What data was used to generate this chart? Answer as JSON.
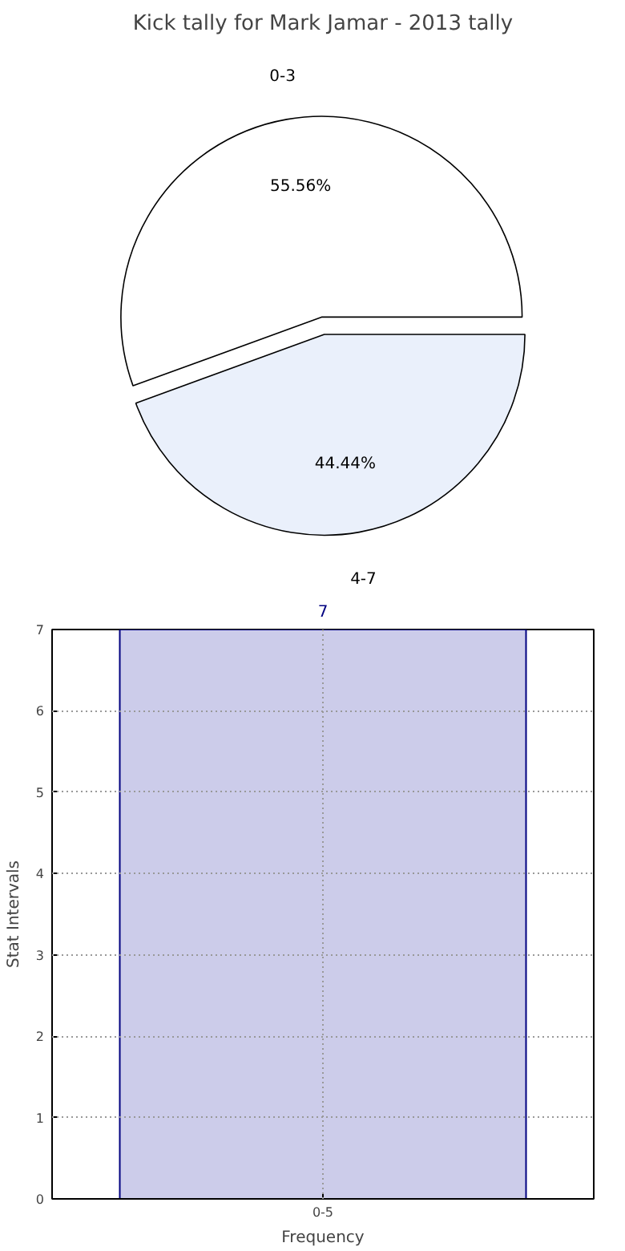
{
  "chart_data": [
    {
      "type": "pie",
      "title": "Kick tally for Mark Jamar - 2013 tally",
      "categories": [
        "0-3",
        "4-7"
      ],
      "values": [
        55.56,
        44.44
      ],
      "colors": [
        "#ffffff",
        "#eaf0fb"
      ],
      "value_labels": [
        "55.56%",
        "44.44%"
      ]
    },
    {
      "type": "bar",
      "categories": [
        "0-5"
      ],
      "values": [
        7
      ],
      "color": "#ccccea",
      "xlabel": "Frequency",
      "ylabel": "Stat Intervals",
      "ylim": [
        0,
        7
      ],
      "yticks": [
        0,
        1,
        2,
        3,
        4,
        5,
        6,
        7
      ],
      "grid": true,
      "data_labels": true
    }
  ]
}
